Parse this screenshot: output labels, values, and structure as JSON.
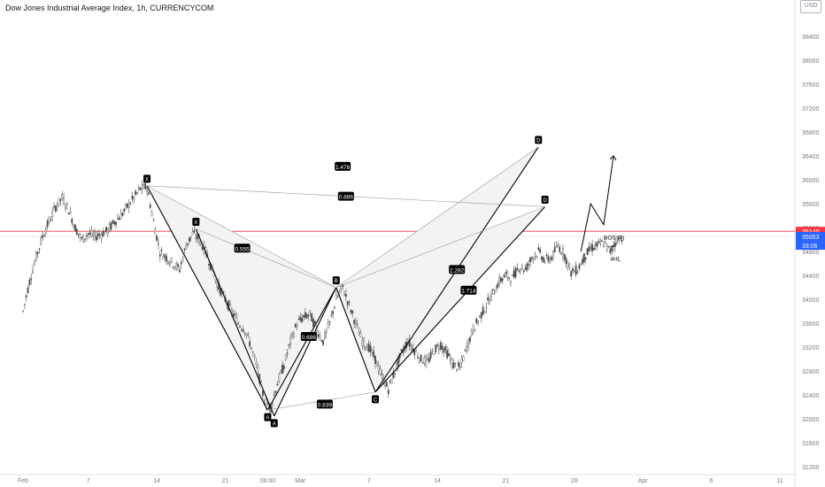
{
  "header": {
    "title": "Dow Jones Industrial Average Index, 1h, CURRENCYCOM",
    "unit_top": "30815",
    "unit": "USD"
  },
  "colors": {
    "background": "#ffffff",
    "candle": "#4a4a4a",
    "pattern_line": "#000000",
    "pattern_fill": "#f3f3f3",
    "thin_line": "#9a9a9a",
    "red_price": "#f23645",
    "blue_price": "#2962ff",
    "axis_text": "#787b86"
  },
  "chart_data": {
    "type": "candlestick",
    "symbol": "Dow Jones Industrial Average Index",
    "timeframe": "1h",
    "exchange": "CURRENCYCOM",
    "y_ticks": [
      31200,
      31600,
      32000,
      32400,
      32800,
      33200,
      33600,
      34000,
      34400,
      34800,
      35200,
      35600,
      36000,
      36400,
      36800,
      37200,
      37600,
      38000,
      38400
    ],
    "ylim": [
      31100,
      38800
    ],
    "x_ticks": [
      "Feb",
      "7",
      "14",
      "21",
      "06:00",
      "Mar",
      "7",
      "14",
      "21",
      "28",
      "Apr",
      "6",
      "11"
    ],
    "x_tick_index": [
      0,
      20,
      41,
      62,
      75,
      85,
      106,
      127,
      148,
      169,
      190,
      211,
      232
    ],
    "price_series": [
      {
        "t": 0,
        "p": 33800
      },
      {
        "t": 2,
        "p": 34300
      },
      {
        "t": 4,
        "p": 34700
      },
      {
        "t": 6,
        "p": 35050
      },
      {
        "t": 8,
        "p": 35300
      },
      {
        "t": 10,
        "p": 35550
      },
      {
        "t": 12,
        "p": 35700
      },
      {
        "t": 14,
        "p": 35500
      },
      {
        "t": 16,
        "p": 35200
      },
      {
        "t": 18,
        "p": 35000
      },
      {
        "t": 20,
        "p": 35100
      },
      {
        "t": 22,
        "p": 35050
      },
      {
        "t": 24,
        "p": 35100
      },
      {
        "t": 26,
        "p": 35150
      },
      {
        "t": 28,
        "p": 35300
      },
      {
        "t": 30,
        "p": 35400
      },
      {
        "t": 32,
        "p": 35550
      },
      {
        "t": 34,
        "p": 35700
      },
      {
        "t": 36,
        "p": 35850
      },
      {
        "t": 38,
        "p": 35880
      },
      {
        "t": 40,
        "p": 35300
      },
      {
        "t": 42,
        "p": 34800
      },
      {
        "t": 44,
        "p": 34700
      },
      {
        "t": 46,
        "p": 34600
      },
      {
        "t": 48,
        "p": 34500
      },
      {
        "t": 50,
        "p": 34900
      },
      {
        "t": 52,
        "p": 35100
      },
      {
        "t": 54,
        "p": 35000
      },
      {
        "t": 56,
        "p": 34800
      },
      {
        "t": 58,
        "p": 34500
      },
      {
        "t": 60,
        "p": 34200
      },
      {
        "t": 62,
        "p": 34000
      },
      {
        "t": 64,
        "p": 33800
      },
      {
        "t": 66,
        "p": 33600
      },
      {
        "t": 68,
        "p": 33500
      },
      {
        "t": 70,
        "p": 33200
      },
      {
        "t": 72,
        "p": 32800
      },
      {
        "t": 74,
        "p": 32300
      },
      {
        "t": 76,
        "p": 32200
      },
      {
        "t": 78,
        "p": 32600
      },
      {
        "t": 80,
        "p": 32900
      },
      {
        "t": 82,
        "p": 33300
      },
      {
        "t": 84,
        "p": 33600
      },
      {
        "t": 86,
        "p": 33700
      },
      {
        "t": 88,
        "p": 33750
      },
      {
        "t": 90,
        "p": 33500
      },
      {
        "t": 92,
        "p": 33300
      },
      {
        "t": 94,
        "p": 33600
      },
      {
        "t": 96,
        "p": 34000
      },
      {
        "t": 98,
        "p": 34200
      },
      {
        "t": 100,
        "p": 33900
      },
      {
        "t": 102,
        "p": 33600
      },
      {
        "t": 104,
        "p": 33300
      },
      {
        "t": 106,
        "p": 33200
      },
      {
        "t": 108,
        "p": 33000
      },
      {
        "t": 110,
        "p": 32700
      },
      {
        "t": 112,
        "p": 32500
      },
      {
        "t": 114,
        "p": 32800
      },
      {
        "t": 116,
        "p": 33100
      },
      {
        "t": 118,
        "p": 33300
      },
      {
        "t": 120,
        "p": 33150
      },
      {
        "t": 122,
        "p": 33000
      },
      {
        "t": 124,
        "p": 32950
      },
      {
        "t": 126,
        "p": 33150
      },
      {
        "t": 128,
        "p": 33250
      },
      {
        "t": 130,
        "p": 33100
      },
      {
        "t": 132,
        "p": 32900
      },
      {
        "t": 134,
        "p": 32850
      },
      {
        "t": 136,
        "p": 33200
      },
      {
        "t": 138,
        "p": 33500
      },
      {
        "t": 140,
        "p": 33700
      },
      {
        "t": 142,
        "p": 33900
      },
      {
        "t": 144,
        "p": 34100
      },
      {
        "t": 146,
        "p": 34300
      },
      {
        "t": 148,
        "p": 34400
      },
      {
        "t": 150,
        "p": 34350
      },
      {
        "t": 152,
        "p": 34550
      },
      {
        "t": 154,
        "p": 34500
      },
      {
        "t": 156,
        "p": 34700
      },
      {
        "t": 158,
        "p": 34800
      },
      {
        "t": 160,
        "p": 34650
      },
      {
        "t": 162,
        "p": 34700
      },
      {
        "t": 164,
        "p": 34900
      },
      {
        "t": 166,
        "p": 34750
      },
      {
        "t": 168,
        "p": 34450
      },
      {
        "t": 170,
        "p": 34500
      },
      {
        "t": 172,
        "p": 34700
      },
      {
        "t": 174,
        "p": 34850
      },
      {
        "t": 176,
        "p": 34900
      },
      {
        "t": 178,
        "p": 34950
      },
      {
        "t": 180,
        "p": 34800
      },
      {
        "t": 182,
        "p": 35000
      },
      {
        "t": 184,
        "p": 35053
      }
    ],
    "pattern_points": [
      {
        "label": "X",
        "t": 38,
        "p": 35900
      },
      {
        "label": "X",
        "t": 53,
        "p": 35180
      },
      {
        "label": "A",
        "t": 75,
        "p": 32150
      },
      {
        "label": "A",
        "t": 77,
        "p": 32050
      },
      {
        "label": "B",
        "t": 96,
        "p": 34200
      },
      {
        "label": "C",
        "t": 108,
        "p": 32450
      },
      {
        "label": "D",
        "t": 158,
        "p": 36550
      },
      {
        "label": "D",
        "t": 160,
        "p": 35550
      }
    ],
    "ratios": [
      "1.476",
      "0.886",
      "0.555",
      "0.686",
      "2.282",
      "1.714",
      "0.839"
    ],
    "annotations": [
      "BOS (4)",
      "4HL"
    ],
    "projection": [
      {
        "t": 171,
        "p": 34800
      },
      {
        "t": 174,
        "p": 35600
      },
      {
        "t": 178,
        "p": 35250
      },
      {
        "t": 181,
        "p": 36400
      }
    ],
    "price_labels": [
      {
        "value": "35140",
        "color": "#f23645"
      },
      {
        "value": "35053",
        "color": "#2962ff"
      },
      {
        "value": "33:06",
        "color": "#2962ff"
      }
    ]
  }
}
